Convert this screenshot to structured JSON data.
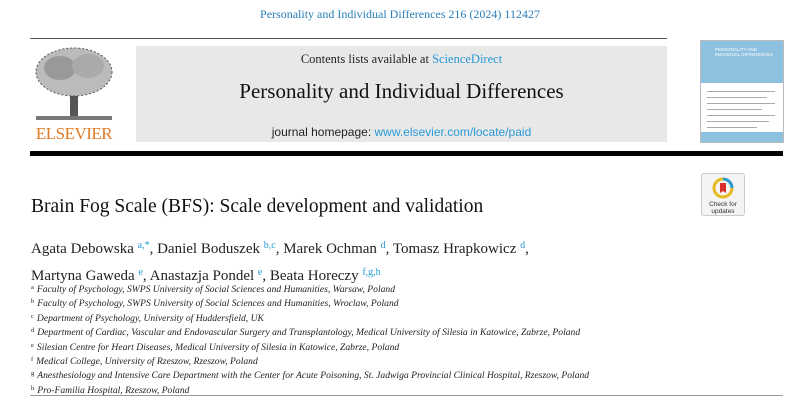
{
  "header": {
    "citation": "Personality and Individual Differences 216 (2024) 112427",
    "publisher_logo_text": "ELSEVIER",
    "contents_prefix": "Contents lists available at ",
    "contents_link": "ScienceDirect",
    "journal_title": "Personality and Individual Differences",
    "homepage_prefix": "journal homepage: ",
    "homepage_link": "www.elsevier.com/locate/paid",
    "cover_title": "PERSONALITY AND INDIVIDUAL DIFFERENCES"
  },
  "badge": {
    "line1": "Check for",
    "line2": "updates"
  },
  "article": {
    "title": "Brain Fog Scale (BFS): Scale development and validation",
    "authors": [
      {
        "name": "Agata Debowska",
        "sup": "a,*",
        "sep": ", "
      },
      {
        "name": "Daniel Boduszek",
        "sup": "b,c",
        "sep": ", "
      },
      {
        "name": "Marek Ochman",
        "sup": "d",
        "sep": ", "
      },
      {
        "name": "Tomasz Hrapkowicz",
        "sup": "d",
        "sep": ","
      },
      {
        "name": "Martyna Gaweda",
        "sup": "e",
        "sep": ", "
      },
      {
        "name": "Anastazja Pondel",
        "sup": "e",
        "sep": ", "
      },
      {
        "name": "Beata Horeczy",
        "sup": "f,g,h",
        "sep": ""
      }
    ],
    "affiliations": [
      {
        "label": "a",
        "text": "Faculty of Psychology, SWPS University of Social Sciences and Humanities, Warsaw, Poland"
      },
      {
        "label": "b",
        "text": "Faculty of Psychology, SWPS University of Social Sciences and Humanities, Wroclaw, Poland"
      },
      {
        "label": "c",
        "text": "Department of Psychology, University of Huddersfield, UK"
      },
      {
        "label": "d",
        "text": "Department of Cardiac, Vascular and Endovascular Surgery and Transplantology, Medical University of Silesia in Katowice, Zabrze, Poland"
      },
      {
        "label": "e",
        "text": "Silesian Centre for Heart Diseases, Medical University of Silesia in Katowice, Zabrze, Poland"
      },
      {
        "label": "f",
        "text": "Medical College, University of Rzeszow, Rzeszow, Poland"
      },
      {
        "label": "g",
        "text": "Anesthesiology and Intensive Care Department with the Center for Acute Poisoning, St. Jadwiga Provincial Clinical Hospital, Rzeszow, Poland"
      },
      {
        "label": "h",
        "text": "Pro-Familia Hospital, Rzeszow, Poland"
      }
    ]
  },
  "colors": {
    "link": "#2a9ad6",
    "elsevier_orange": "#e07b25",
    "gray_box": "#e8e8e8"
  }
}
